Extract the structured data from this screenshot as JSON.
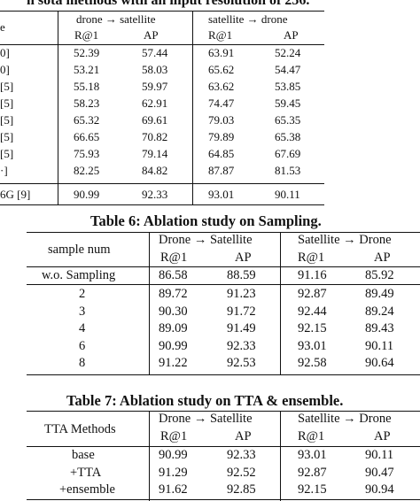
{
  "table5": {
    "caption_fragment": "h sota methods with an input resolution of 256.",
    "group_headers": [
      "drone → satellite",
      "satellite → drone"
    ],
    "metric_headers": [
      "R@1",
      "AP",
      "R@1",
      "AP"
    ],
    "method_header_fragment": "e",
    "rows": [
      {
        "method": "0]",
        "vals": [
          "52.39",
          "57.44",
          "63.91",
          "52.24"
        ]
      },
      {
        "method": "0]",
        "vals": [
          "53.21",
          "58.03",
          "65.62",
          "54.47"
        ]
      },
      {
        "method": "[5]",
        "vals": [
          "55.18",
          "59.97",
          "63.62",
          "53.85"
        ]
      },
      {
        "method": "[5]",
        "vals": [
          "58.23",
          "62.91",
          "74.47",
          "59.45"
        ]
      },
      {
        "method": "[5]",
        "vals": [
          "65.32",
          "69.61",
          "79.03",
          "65.35"
        ]
      },
      {
        "method": "[5]",
        "vals": [
          "66.65",
          "70.82",
          "79.89",
          "65.38"
        ]
      },
      {
        "method": "[5]",
        "vals": [
          "75.93",
          "79.14",
          "64.85",
          "67.69"
        ]
      },
      {
        "method": "·]",
        "vals": [
          "82.25",
          "84.82",
          "87.87",
          "81.53"
        ]
      }
    ],
    "final_row": {
      "method": "6G [9]",
      "vals": [
        "90.99",
        "92.33",
        "93.01",
        "90.11"
      ]
    }
  },
  "table6": {
    "caption": "Table 6: Ablation study on Sampling.",
    "first_col_header": "sample num",
    "group_headers": [
      "Drone → Satellite",
      "Satellite → Drone"
    ],
    "metric_headers": [
      "R@1",
      "AP",
      "R@1",
      "AP"
    ],
    "first_row": {
      "label": "w.o. Sampling",
      "vals": [
        "86.58",
        "88.59",
        "91.16",
        "85.92"
      ]
    },
    "rows": [
      {
        "label": "2",
        "vals": [
          "89.72",
          "91.23",
          "92.87",
          "89.49"
        ]
      },
      {
        "label": "3",
        "vals": [
          "90.30",
          "91.72",
          "92.44",
          "89.24"
        ]
      },
      {
        "label": "4",
        "vals": [
          "89.09",
          "91.49",
          "92.15",
          "89.43"
        ]
      },
      {
        "label": "6",
        "vals": [
          "90.99",
          "92.33",
          "93.01",
          "90.11"
        ]
      },
      {
        "label": "8",
        "vals": [
          "91.22",
          "92.53",
          "92.58",
          "90.64"
        ]
      }
    ]
  },
  "table7": {
    "caption": "Table 7: Ablation study on TTA & ensemble.",
    "first_col_header": "TTA Methods",
    "group_headers": [
      "Drone → Satellite",
      "Satellite → Drone"
    ],
    "metric_headers": [
      "R@1",
      "AP",
      "R@1",
      "AP"
    ],
    "rows": [
      {
        "label": "base",
        "vals": [
          "90.99",
          "92.33",
          "93.01",
          "90.11"
        ]
      },
      {
        "label": "+TTA",
        "vals": [
          "91.29",
          "92.52",
          "92.87",
          "90.47"
        ]
      },
      {
        "label": "+ensemble",
        "vals": [
          "91.62",
          "92.85",
          "92.15",
          "90.94"
        ]
      }
    ]
  }
}
